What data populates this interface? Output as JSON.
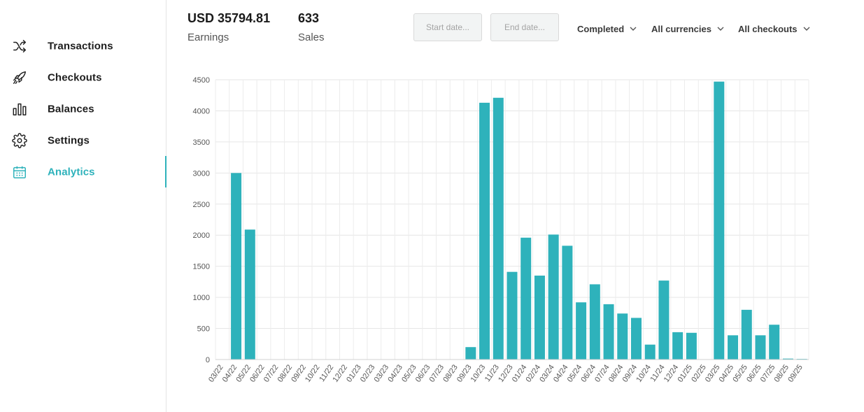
{
  "sidebar": {
    "items": [
      {
        "label": "Transactions",
        "icon": "shuffle-icon",
        "active": false
      },
      {
        "label": "Checkouts",
        "icon": "rocket-icon",
        "active": false
      },
      {
        "label": "Balances",
        "icon": "bar-chart-icon",
        "active": false
      },
      {
        "label": "Settings",
        "icon": "gear-icon",
        "active": false
      },
      {
        "label": "Analytics",
        "icon": "calendar-icon",
        "active": true
      }
    ],
    "accent_color": "#2eb2bb"
  },
  "stats": {
    "earnings_value": "USD 35794.81",
    "earnings_label": "Earnings",
    "sales_value": "633",
    "sales_label": "Sales"
  },
  "filters": {
    "start_date_placeholder": "Start date...",
    "end_date_placeholder": "End date...",
    "status": "Completed",
    "currency": "All currencies",
    "checkout": "All checkouts"
  },
  "chart_data": {
    "type": "bar",
    "categories": [
      "03/22",
      "04/22",
      "05/22",
      "06/22",
      "07/22",
      "08/22",
      "09/22",
      "10/22",
      "11/22",
      "12/22",
      "01/23",
      "02/23",
      "03/23",
      "04/23",
      "05/23",
      "06/23",
      "07/23",
      "08/23",
      "09/23",
      "10/23",
      "11/23",
      "12/23",
      "01/24",
      "02/24",
      "03/24",
      "04/24",
      "05/24",
      "06/24",
      "07/24",
      "08/24",
      "09/24",
      "10/24",
      "11/24",
      "12/24",
      "01/25",
      "02/25",
      "03/25",
      "04/25",
      "05/25",
      "06/25",
      "07/25",
      "08/25",
      "09/25"
    ],
    "values": [
      0,
      3000,
      2090,
      0,
      0,
      0,
      0,
      0,
      0,
      0,
      0,
      0,
      0,
      0,
      0,
      0,
      0,
      0,
      200,
      4130,
      4210,
      1410,
      1960,
      1350,
      2010,
      1830,
      920,
      1210,
      890,
      740,
      670,
      240,
      1270,
      440,
      430,
      0,
      4470,
      390,
      800,
      390,
      560,
      15,
      10
    ],
    "ylim": [
      0,
      4500
    ],
    "yticks": [
      "0",
      "500",
      "1000",
      "1500",
      "2000",
      "2500",
      "3000",
      "3500",
      "4000",
      "4500"
    ],
    "grid": true,
    "bar_color": "#2eb2bb"
  }
}
